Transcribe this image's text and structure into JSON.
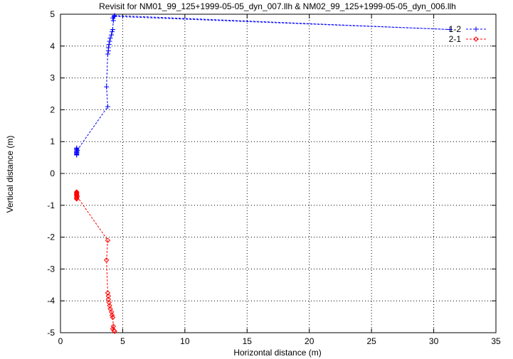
{
  "chart_data": {
    "type": "line",
    "title": "Revisit for NM01_99_125+1999-05-05_dyn_007.llh & NM02_99_125+1999-05-05_dyn_006.llh",
    "xlabel": "Horizontal distance (m)",
    "ylabel": "Vertical distance (m)",
    "xlim": [
      0,
      35
    ],
    "ylim": [
      -5,
      5
    ],
    "xticks": [
      0,
      5,
      10,
      15,
      20,
      25,
      30,
      35
    ],
    "yticks": [
      -5,
      -4,
      -3,
      -2,
      -1,
      0,
      1,
      2,
      3,
      4,
      5
    ],
    "grid": true,
    "legend_position": "top-right",
    "series": [
      {
        "name": "1-2",
        "color": "#0000ff",
        "marker": "plus",
        "x": [
          1.3,
          1.3,
          1.3,
          1.3,
          1.35,
          1.3,
          1.3,
          1.3,
          1.3,
          1.3,
          1.3,
          3.8,
          3.7,
          3.8,
          3.85,
          3.85,
          3.9,
          3.95,
          4.0,
          4.1,
          4.15,
          4.2,
          4.25,
          4.2,
          4.3,
          4.35,
          31.3,
          4.35
        ],
        "y": [
          0.58,
          0.62,
          0.66,
          0.69,
          0.72,
          0.75,
          0.78,
          0.8,
          0.6,
          0.65,
          0.7,
          2.1,
          2.72,
          3.75,
          3.85,
          3.95,
          4.05,
          4.15,
          4.25,
          4.35,
          4.45,
          4.52,
          4.8,
          4.88,
          4.93,
          4.96,
          4.52,
          4.93
        ]
      },
      {
        "name": "2-1",
        "color": "#ff0000",
        "marker": "diamond",
        "x": [
          1.3,
          1.3,
          1.3,
          1.3,
          1.35,
          1.3,
          1.3,
          1.3,
          1.3,
          1.3,
          1.3,
          3.8,
          3.7,
          3.8,
          3.85,
          3.85,
          3.9,
          3.95,
          4.0,
          4.1,
          4.15,
          4.2,
          4.25,
          4.2,
          4.3,
          4.35
        ],
        "y": [
          -0.58,
          -0.62,
          -0.66,
          -0.69,
          -0.72,
          -0.75,
          -0.78,
          -0.8,
          -0.6,
          -0.65,
          -0.7,
          -2.1,
          -2.72,
          -3.75,
          -3.85,
          -3.95,
          -4.05,
          -4.15,
          -4.25,
          -4.35,
          -4.45,
          -4.52,
          -4.8,
          -4.88,
          -4.93,
          -4.96
        ]
      }
    ]
  }
}
